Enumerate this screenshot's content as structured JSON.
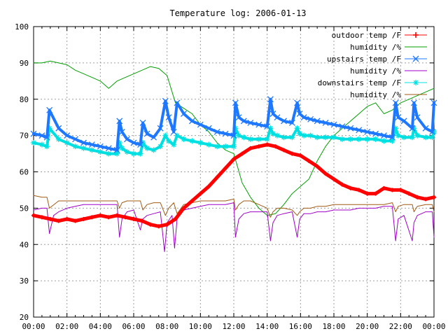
{
  "chart_data": {
    "type": "line",
    "title": "Temperature log: 2006-01-13",
    "xlabel": "",
    "ylabel": "",
    "xlim": [
      "00:00",
      "24:00"
    ],
    "ylim": [
      20,
      100
    ],
    "x_ticks": [
      "00:00",
      "02:00",
      "04:00",
      "06:00",
      "08:00",
      "10:00",
      "12:00",
      "14:00",
      "16:00",
      "18:00",
      "20:00",
      "22:00",
      "00:00"
    ],
    "y_ticks": [
      20,
      30,
      40,
      50,
      60,
      70,
      80,
      90,
      100
    ],
    "grid": true,
    "legend_position": "top-right",
    "series": [
      {
        "name": "outdoor temp /F",
        "color": "#ff0000",
        "marker": "plus",
        "x": [
          0,
          0.5,
          1,
          1.5,
          2,
          2.5,
          3,
          3.5,
          4,
          4.5,
          5,
          5.5,
          6,
          6.5,
          7,
          7.5,
          8,
          8.5,
          9,
          9.5,
          10,
          10.5,
          11,
          11.5,
          12,
          12.5,
          13,
          13.5,
          14,
          14.5,
          15,
          15.5,
          16,
          16.5,
          17,
          17.5,
          18,
          18.5,
          19,
          19.5,
          20,
          20.5,
          21,
          21.5,
          22,
          22.5,
          23,
          23.5,
          24
        ],
        "y": [
          48,
          47.5,
          47,
          46.5,
          47,
          46.5,
          47,
          47.5,
          48,
          47.5,
          48,
          47.5,
          47,
          46.5,
          45.5,
          45,
          45.5,
          47,
          50,
          52,
          54,
          56,
          58.5,
          61,
          63.5,
          65,
          66.5,
          67,
          67.5,
          67,
          66,
          65,
          64.5,
          63,
          61.5,
          59.5,
          58,
          56.5,
          55.5,
          55,
          54,
          54,
          55.5,
          55,
          55,
          54,
          53,
          52.5,
          53
        ]
      },
      {
        "name": "humidity /%",
        "color": "#00a000",
        "marker": "none",
        "x": [
          0,
          0.5,
          1,
          1.5,
          2,
          2.5,
          3,
          3.5,
          4,
          4.5,
          5,
          5.5,
          6,
          6.5,
          7,
          7.5,
          8,
          8.5,
          9,
          9.5,
          10,
          10.5,
          11,
          11.5,
          12,
          12.5,
          13,
          13.5,
          14,
          14.5,
          15,
          15.5,
          16,
          16.5,
          17,
          17.5,
          18,
          18.5,
          19,
          19.5,
          20,
          20.5,
          21,
          21.5,
          22,
          22.5,
          23,
          23.5,
          24
        ],
        "y": [
          90,
          90,
          90.5,
          90,
          89.5,
          88,
          87,
          86,
          85,
          83,
          85,
          86,
          87,
          88,
          89,
          88.5,
          86.5,
          79,
          77.5,
          76,
          73,
          71,
          68,
          66,
          65,
          57,
          53,
          50,
          48,
          48.5,
          51,
          54,
          56,
          58,
          63,
          67,
          70,
          72,
          74,
          76,
          78,
          79,
          76,
          77,
          79,
          80,
          81,
          82,
          83
        ]
      },
      {
        "name": "upstairs temp /F",
        "color": "#1e78ff",
        "marker": "x",
        "x": [
          0,
          0.5,
          0.8,
          0.95,
          1.5,
          2,
          2.5,
          3,
          3.5,
          4,
          4.5,
          5,
          5.15,
          5.3,
          5.6,
          6,
          6.4,
          6.55,
          6.8,
          7.2,
          7.6,
          7.9,
          8.1,
          8.4,
          8.6,
          9,
          9.5,
          10,
          10.5,
          11,
          11.5,
          12,
          12.1,
          12.3,
          12.6,
          13,
          13.5,
          14,
          14.2,
          14.35,
          14.6,
          15,
          15.5,
          15.8,
          15.95,
          16.2,
          16.6,
          17,
          17.5,
          18,
          18.5,
          19,
          19.5,
          20,
          20.5,
          21,
          21.5,
          21.7,
          21.85,
          22.2,
          22.7,
          22.8,
          23,
          23.5,
          23.9,
          24
        ],
        "y": [
          70.5,
          70,
          69.5,
          77,
          72,
          70,
          69,
          68,
          67.5,
          67,
          66.5,
          66,
          74,
          71,
          69,
          68,
          67.5,
          73.5,
          70.5,
          69.5,
          72,
          79.5,
          75,
          71,
          79,
          76,
          74,
          73,
          72,
          71,
          70.5,
          70,
          79,
          75,
          74,
          73.5,
          73,
          72.5,
          80,
          76,
          75,
          74,
          73.5,
          79,
          76,
          75,
          74.5,
          74,
          73.5,
          73,
          72.5,
          72,
          71.5,
          71,
          70.5,
          70,
          69.5,
          79,
          75,
          74,
          72,
          79,
          75,
          72,
          71,
          79
        ]
      },
      {
        "name": "humidity /%",
        "color": "#a000c8",
        "marker": "none",
        "x": [
          0,
          0.5,
          0.8,
          0.95,
          1.2,
          1.5,
          2,
          2.5,
          3,
          3.5,
          4,
          4.5,
          5,
          5.15,
          5.3,
          5.6,
          6,
          6.4,
          6.55,
          6.8,
          7.2,
          7.6,
          7.85,
          8.0,
          8.3,
          8.45,
          8.6,
          9,
          9.5,
          10,
          10.5,
          11,
          11.5,
          12,
          12.1,
          12.3,
          12.6,
          13,
          13.5,
          14,
          14.2,
          14.35,
          14.6,
          15,
          15.5,
          15.8,
          15.95,
          16.2,
          16.6,
          17,
          17.5,
          18,
          18.5,
          19,
          19.5,
          20,
          20.5,
          21,
          21.5,
          21.7,
          21.85,
          22.2,
          22.7,
          22.8,
          23,
          23.5,
          23.9,
          24
        ],
        "y": [
          49.5,
          50,
          50,
          43,
          48,
          49,
          50,
          50.5,
          51,
          51,
          51,
          51,
          51,
          42,
          47,
          49,
          49.5,
          44,
          47,
          48,
          48.5,
          49,
          38,
          46,
          48,
          39,
          47,
          49.5,
          50,
          50.5,
          51,
          51,
          51,
          51.5,
          42,
          47,
          48.5,
          49,
          49,
          49,
          41,
          46,
          48,
          48.5,
          49,
          42,
          47,
          48.5,
          48.5,
          49,
          49,
          49.5,
          49.5,
          49.5,
          50,
          50,
          50,
          50.5,
          50.5,
          41,
          47,
          48,
          41,
          46,
          48,
          49,
          49,
          42
        ]
      },
      {
        "name": "downstairs temp /F",
        "color": "#00e0e0",
        "marker": "star",
        "x": [
          0,
          0.5,
          0.8,
          0.95,
          1.5,
          2,
          2.5,
          3,
          3.5,
          4,
          4.5,
          5,
          5.15,
          5.3,
          5.6,
          6,
          6.4,
          6.55,
          6.8,
          7.2,
          7.6,
          7.9,
          8.1,
          8.4,
          8.6,
          9,
          9.5,
          10,
          10.5,
          11,
          11.5,
          12,
          12.1,
          12.3,
          12.6,
          13,
          13.5,
          14,
          14.2,
          14.35,
          14.6,
          15,
          15.5,
          15.8,
          15.95,
          16.2,
          16.6,
          17,
          17.5,
          18,
          18.5,
          19,
          19.5,
          20,
          20.5,
          21,
          21.5,
          21.7,
          21.85,
          22.2,
          22.7,
          22.8,
          23,
          23.5,
          23.9,
          24
        ],
        "y": [
          68,
          67.5,
          67,
          72,
          69,
          68,
          67,
          66.5,
          66,
          65.5,
          65,
          65,
          68,
          66.5,
          65.5,
          65,
          65,
          68,
          66.5,
          66,
          67,
          70,
          68.5,
          67.5,
          70,
          69,
          68.5,
          68,
          67.5,
          67,
          67,
          67,
          72,
          70,
          69.5,
          69,
          69,
          69,
          72,
          70.5,
          70,
          69.5,
          69.5,
          72,
          70.5,
          70,
          70,
          69.5,
          69.5,
          69.5,
          69,
          69,
          69,
          69,
          69,
          68.5,
          68.5,
          72,
          70,
          69.5,
          69.5,
          72,
          70,
          69.5,
          69.5,
          71
        ]
      },
      {
        "name": "humidity /%",
        "color": "#a05a14",
        "marker": "none",
        "x": [
          0,
          0.5,
          0.8,
          0.95,
          1.5,
          2,
          2.5,
          3,
          3.5,
          4,
          4.5,
          5,
          5.15,
          5.3,
          5.6,
          6,
          6.4,
          6.55,
          6.8,
          7.2,
          7.6,
          7.9,
          8.1,
          8.4,
          8.6,
          9,
          9.5,
          10,
          10.5,
          11,
          11.5,
          12,
          12.1,
          12.3,
          12.6,
          13,
          13.5,
          14,
          14.2,
          14.35,
          14.6,
          15,
          15.5,
          15.8,
          15.95,
          16.2,
          16.6,
          17,
          17.5,
          18,
          18.5,
          19,
          19.5,
          20,
          20.5,
          21,
          21.5,
          21.7,
          21.85,
          22.2,
          22.7,
          22.8,
          23,
          23.5,
          23.9,
          24
        ],
        "y": [
          53.5,
          53,
          53,
          50,
          52,
          52,
          52,
          52,
          52,
          52,
          52,
          52,
          50,
          51.5,
          52,
          52,
          52,
          49.5,
          51,
          51.5,
          51.5,
          48,
          50,
          51.5,
          48.5,
          51,
          51.5,
          52,
          52,
          52,
          52,
          52.5,
          49.5,
          51,
          52,
          52,
          51,
          50,
          47.5,
          49,
          50,
          50,
          49.5,
          48,
          49,
          50,
          50,
          50.5,
          50.5,
          51,
          51,
          51,
          51,
          51,
          51,
          51,
          51.5,
          49,
          50.5,
          51,
          51,
          49,
          50.5,
          51,
          51,
          49
        ]
      }
    ]
  }
}
